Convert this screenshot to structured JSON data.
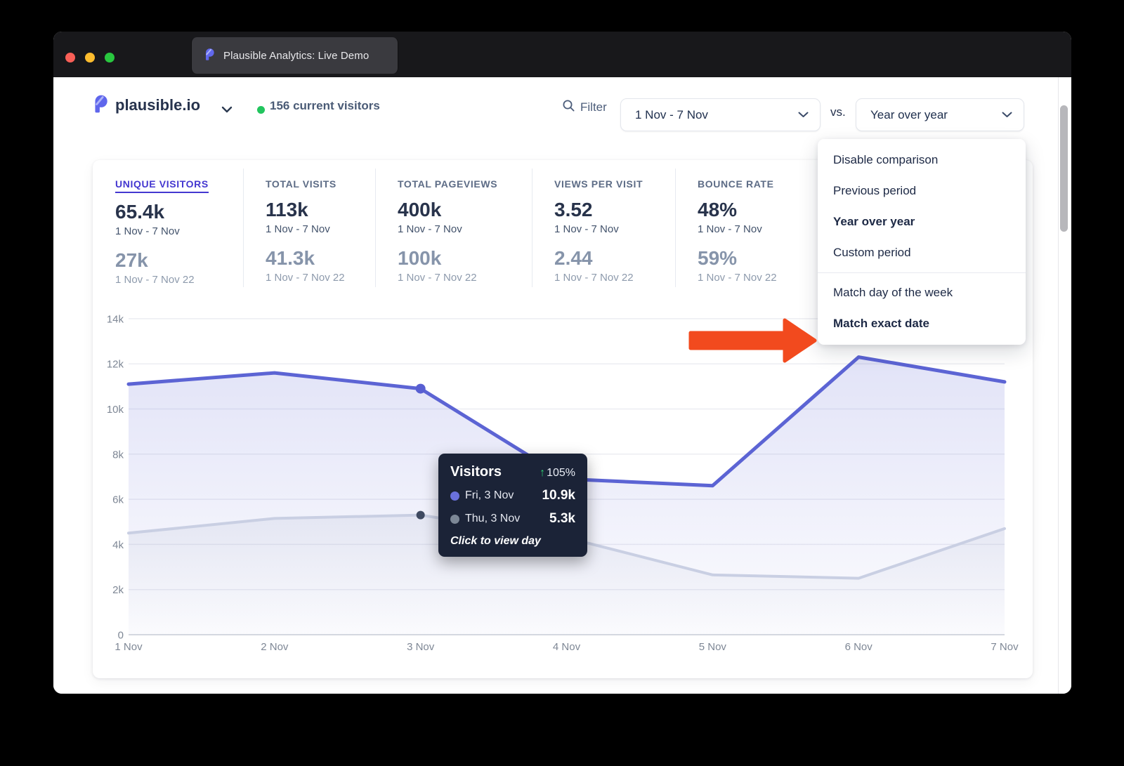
{
  "browser": {
    "tab_title": "Plausible Analytics: Live Demo"
  },
  "header": {
    "site_name": "plausible.io",
    "current_visitors": "156 current visitors",
    "filter_label": "Filter",
    "date_range": "1 Nov - 7 Nov",
    "vs_label": "vs.",
    "comparison_mode": "Year over year"
  },
  "stats": {
    "items": [
      {
        "label": "UNIQUE VISITORS",
        "value": "65.4k",
        "period": "1 Nov - 7 Nov",
        "prev_value": "27k",
        "prev_period": "1 Nov - 7 Nov 22"
      },
      {
        "label": "TOTAL VISITS",
        "value": "113k",
        "period": "1 Nov - 7 Nov",
        "prev_value": "41.3k",
        "prev_period": "1 Nov - 7 Nov 22"
      },
      {
        "label": "TOTAL PAGEVIEWS",
        "value": "400k",
        "period": "1 Nov - 7 Nov",
        "prev_value": "100k",
        "prev_period": "1 Nov - 7 Nov 22"
      },
      {
        "label": "VIEWS PER VISIT",
        "value": "3.52",
        "period": "1 Nov - 7 Nov",
        "prev_value": "2.44",
        "prev_period": "1 Nov - 7 Nov 22"
      },
      {
        "label": "BOUNCE RATE",
        "value": "48%",
        "period": "1 Nov - 7 Nov",
        "prev_value": "59%",
        "prev_period": "1 Nov - 7 Nov 22"
      }
    ]
  },
  "menu": {
    "section1": [
      "Disable comparison",
      "Previous period",
      "Year over year",
      "Custom period"
    ],
    "section2": [
      "Match day of the week",
      "Match exact date"
    ],
    "selected_items": [
      "Year over year",
      "Match exact date"
    ]
  },
  "tooltip": {
    "title": "Visitors",
    "up_arrow": "↑",
    "change": "105%",
    "rows": [
      {
        "label": "Fri, 3 Nov",
        "value": "10.9k"
      },
      {
        "label": "Thu, 3 Nov",
        "value": "5.3k"
      }
    ],
    "footer": "Click to view day"
  },
  "chart_data": {
    "type": "line",
    "x": [
      "1 Nov",
      "2 Nov",
      "3 Nov",
      "4 Nov",
      "5 Nov",
      "6 Nov",
      "7 Nov"
    ],
    "series": [
      {
        "name": "1 Nov - 7 Nov",
        "color": "#5c64d4",
        "marker_color": "#585fd2",
        "marker_index": 2,
        "marker_r": 7,
        "values": [
          11100,
          11600,
          10900,
          6900,
          6600,
          12300,
          11200
        ]
      },
      {
        "name": "1 Nov - 7 Nov 22",
        "color": "#c9cfe3",
        "marker_color": "#3f4a61",
        "marker_index": 2,
        "marker_r": 6,
        "values": [
          4500,
          5150,
          5300,
          4300,
          2650,
          2500,
          4700
        ]
      }
    ],
    "ylim": [
      0,
      14000
    ],
    "yticks": [
      {
        "v": 0,
        "label": "0"
      },
      {
        "v": 2000,
        "label": "2k"
      },
      {
        "v": 4000,
        "label": "4k"
      },
      {
        "v": 6000,
        "label": "6k"
      },
      {
        "v": 8000,
        "label": "8k"
      },
      {
        "v": 10000,
        "label": "10k"
      },
      {
        "v": 12000,
        "label": "12k"
      },
      {
        "v": 14000,
        "label": "14k"
      }
    ],
    "grid": "horizontal-only",
    "legend": "none",
    "ylabel": "",
    "xlabel": ""
  },
  "colors": {
    "accent_indigo": "#4437d0",
    "chart_line_main": "#5c64d4",
    "chart_line_comparison": "#c9cfe3",
    "tooltip_bg": "#1b2337",
    "arrow_red": "#f24a1e",
    "live_dot_green": "#22c55e",
    "chrome_bg": "#18181b"
  }
}
